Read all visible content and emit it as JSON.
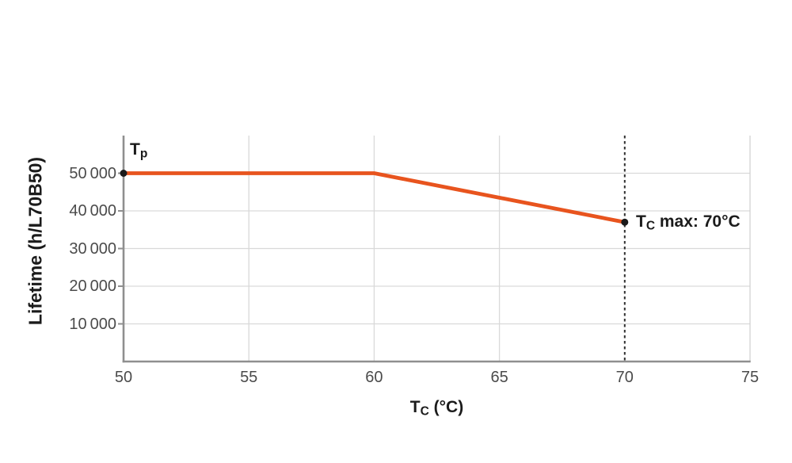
{
  "chart_data": {
    "type": "line",
    "title": "",
    "xlabel": {
      "pre": "T",
      "sub": "C",
      "post": " (°C)"
    },
    "ylabel": "Lifetime (h/L70B50)",
    "xlim": [
      50,
      75
    ],
    "ylim": [
      0,
      60000
    ],
    "grid": true,
    "legend": "none",
    "x_ticks": [
      {
        "value": 50,
        "label": "50",
        "grid": false
      },
      {
        "value": 55,
        "label": "55",
        "grid": true
      },
      {
        "value": 60,
        "label": "60",
        "grid": true
      },
      {
        "value": 65,
        "label": "65",
        "grid": true
      },
      {
        "value": 70,
        "label": "70",
        "grid": false
      },
      {
        "value": 75,
        "label": "75",
        "grid": false
      }
    ],
    "y_ticks": [
      {
        "value": 10000,
        "label": "10 000"
      },
      {
        "value": 20000,
        "label": "20 000"
      },
      {
        "value": 30000,
        "label": "30 000"
      },
      {
        "value": 40000,
        "label": "40 000"
      },
      {
        "value": 50000,
        "label": "50 000"
      }
    ],
    "series": [
      {
        "name": "lifetime-vs-case-temperature",
        "color": "#e8541e",
        "points": [
          {
            "x": 50,
            "y": 50000
          },
          {
            "x": 60,
            "y": 50000
          },
          {
            "x": 70,
            "y": 37000
          }
        ],
        "markers": [
          {
            "x": 50,
            "y": 50000
          },
          {
            "x": 70,
            "y": 37000
          }
        ]
      }
    ],
    "reference_line": {
      "x": 70,
      "style": "dashed",
      "color": "#2f2f2f"
    },
    "annotations": {
      "tp": {
        "pre": "T",
        "sub": "p",
        "post": "",
        "x": 50,
        "y": 50000
      },
      "tc_max": {
        "pre": "T",
        "sub": "C",
        "post": " max: 70°C",
        "x": 70,
        "y": 37000
      }
    }
  },
  "colors": {
    "background": "#ffffff",
    "series": "#e8541e",
    "axis": "#8f8f8f",
    "grid": "#d9d9d9",
    "plot_border": "#d2d2d2",
    "reference_line": "#2f2f2f",
    "marker": "#1a1a1a",
    "tick_text": "#4b4b4b",
    "label_text": "#1b1b1b"
  }
}
